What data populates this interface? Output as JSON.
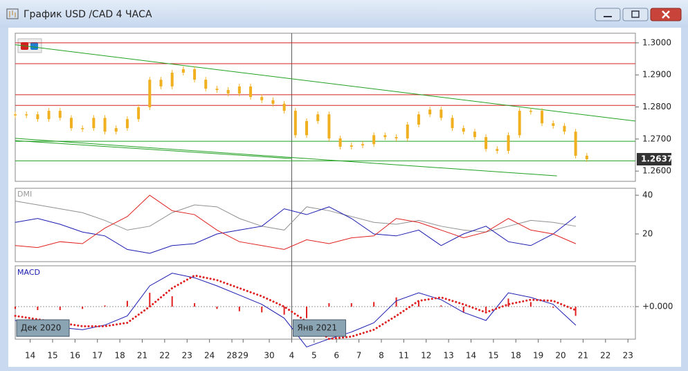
{
  "window": {
    "title": "График USD /CAD  4 ЧАСА"
  },
  "chart_data": [
    {
      "type": "candlestick",
      "color": "#f0b020",
      "x": [
        0,
        3,
        6,
        9,
        12,
        15,
        18,
        21,
        24,
        27,
        30,
        33,
        36,
        39,
        42,
        45,
        48,
        51,
        54,
        57,
        60,
        63,
        66,
        69,
        72,
        75,
        78,
        81,
        84,
        87,
        90,
        93,
        96,
        99,
        102,
        105,
        108,
        111,
        114,
        117,
        120,
        123,
        126,
        129,
        132,
        135,
        138,
        141,
        144,
        147,
        150,
        153
      ],
      "values": [
        1.2777,
        1.2777,
        1.2762,
        1.2788,
        1.2766,
        1.2734,
        1.2734,
        1.2766,
        1.2723,
        1.2734,
        1.2762,
        1.2799,
        1.2885,
        1.2864,
        1.2907,
        1.2918,
        1.2885,
        1.2857,
        1.2853,
        1.2842,
        1.2864,
        1.2831,
        1.2821,
        1.281,
        1.2788,
        1.2712,
        1.2756,
        1.2777,
        1.2702,
        1.2676,
        1.268,
        1.2684,
        1.2712,
        1.2706,
        1.2702,
        1.2745,
        1.2777,
        1.2792,
        1.2766,
        1.2734,
        1.2723,
        1.2706,
        1.2669,
        1.2663,
        1.2712,
        1.2788,
        1.2788,
        1.2749,
        1.2741,
        1.2723,
        1.2648,
        1.2637
      ],
      "ylim": [
        1.2568,
        1.303
      ],
      "yticks": [
        {
          "value": 1.3,
          "label": "1.3000"
        },
        {
          "value": 1.29,
          "label": "1.2900"
        },
        {
          "value": 1.28,
          "label": "1.2800"
        },
        {
          "value": 1.27,
          "label": "1.2700"
        },
        {
          "value": 1.26,
          "label": "1.2600"
        }
      ],
      "current_price": {
        "value": 1.2637,
        "label": "1.2637"
      },
      "levels": [
        {
          "value": 1.3,
          "color": "#d42020"
        },
        {
          "value": 1.2935,
          "color": "#d42020"
        },
        {
          "value": 1.2838,
          "color": "#d42020"
        },
        {
          "value": 1.2805,
          "color": "#d42020"
        },
        {
          "value": 1.2693,
          "color": "#20a020"
        },
        {
          "value": 1.2632,
          "color": "#20a020"
        }
      ],
      "trendlines": [
        {
          "x": [
            0,
            166
          ],
          "y": [
            1.2994,
            1.2756
          ],
          "color": "#20a020"
        },
        {
          "x": [
            0,
            145
          ],
          "y": [
            1.2702,
            1.2585
          ],
          "color": "#20a020"
        },
        {
          "x": [
            0,
            74
          ],
          "y": [
            1.2695,
            1.2639
          ],
          "color": "#20a020"
        }
      ]
    },
    {
      "type": "line",
      "label": "DMI",
      "x": [
        0,
        6,
        12,
        18,
        24,
        30,
        36,
        42,
        48,
        54,
        60,
        66,
        72,
        78,
        84,
        90,
        96,
        102,
        108,
        114,
        120,
        126,
        132,
        138,
        144,
        150
      ],
      "series": [
        {
          "color": "#909090",
          "values": [
            37,
            35,
            33,
            31,
            27,
            22,
            24,
            31,
            35,
            34,
            28,
            24,
            22,
            34,
            32,
            29,
            26,
            25,
            27,
            24,
            22,
            21,
            24,
            27,
            26,
            24
          ]
        },
        {
          "color": "#1a1ab0",
          "values": [
            26,
            28,
            25,
            21,
            19,
            12,
            10,
            14,
            15,
            20,
            22,
            24,
            33,
            30,
            34,
            28,
            20,
            19,
            22,
            14,
            20,
            24,
            16,
            14,
            20,
            29
          ]
        },
        {
          "color": "#e02020",
          "values": [
            14,
            13,
            16,
            15,
            23,
            29,
            40,
            32,
            30,
            22,
            16,
            14,
            12,
            17,
            15,
            18,
            19,
            28,
            26,
            22,
            18,
            21,
            28,
            22,
            20,
            15
          ]
        }
      ],
      "ylim": [
        5.7,
        43.6
      ],
      "yticks": [
        40,
        20
      ]
    },
    {
      "type": "macd",
      "label": "MACD",
      "x": [
        0,
        6,
        12,
        18,
        24,
        30,
        36,
        42,
        48,
        54,
        60,
        66,
        72,
        78,
        84,
        90,
        96,
        102,
        108,
        114,
        120,
        126,
        132,
        138,
        144,
        150
      ],
      "histogram": {
        "color": "#e02020",
        "values": [
          -0.0002,
          -0.0003,
          -0.0003,
          -0.0002,
          0.0001,
          0.0005,
          0.0012,
          0.0009,
          0.0003,
          -0.0002,
          -0.0004,
          -0.0005,
          -0.0007,
          -0.001,
          0.0003,
          0.0003,
          0.0004,
          0.0008,
          0.0005,
          0.0001,
          -0.0005,
          -0.0004,
          0.0007,
          0.0004,
          -0.0001,
          -0.0008
        ]
      },
      "series": [
        {
          "color": "#1a1ab0",
          "values": [
            -0.0012,
            -0.0015,
            -0.0018,
            -0.002,
            -0.0016,
            -0.0008,
            0.0018,
            0.0029,
            0.0025,
            0.0018,
            0.001,
            0.0002,
            -0.001,
            -0.0035,
            -0.0028,
            -0.0022,
            -0.0014,
            0.0005,
            0.0012,
            0.0006,
            -0.0005,
            -0.0012,
            0.0012,
            0.0008,
            0.0002,
            -0.0016
          ]
        },
        {
          "color": "#e02020",
          "dotted": true,
          "values": [
            -0.0008,
            -0.0011,
            -0.0014,
            -0.0017,
            -0.0017,
            -0.0014,
            0,
            0.0016,
            0.0027,
            0.0023,
            0.0016,
            0.0009,
            0,
            -0.0013,
            -0.0028,
            -0.0026,
            -0.002,
            -0.0008,
            0.0005,
            0.0008,
            0.0002,
            -0.0005,
            0.0002,
            0.0006,
            0.0005,
            -0.0003
          ]
        }
      ],
      "ylim": [
        -0.00282,
        0.00354
      ],
      "yticks": [
        {
          "value": 0,
          "label": "+0.000"
        }
      ],
      "period_labels": [
        "Дек 2020",
        "Янв 2021"
      ],
      "xlim": [
        0,
        166
      ],
      "xticks": [
        {
          "value": 4,
          "label": "14"
        },
        {
          "value": 10,
          "label": "15"
        },
        {
          "value": 16,
          "label": "16"
        },
        {
          "value": 22,
          "label": "17"
        },
        {
          "value": 28,
          "label": "18"
        },
        {
          "value": 34,
          "label": "21"
        },
        {
          "value": 40,
          "label": "22"
        },
        {
          "value": 46,
          "label": "23"
        },
        {
          "value": 52,
          "label": "24"
        },
        {
          "value": 58,
          "label": "28"
        },
        {
          "value": 61,
          "label": "29"
        },
        {
          "value": 68,
          "label": "30"
        },
        {
          "value": 74,
          "label": "4"
        },
        {
          "value": 80,
          "label": "5"
        },
        {
          "value": 86,
          "label": "6"
        },
        {
          "value": 92,
          "label": "7"
        },
        {
          "value": 98,
          "label": "8"
        },
        {
          "value": 104,
          "label": "11"
        },
        {
          "value": 110,
          "label": "12"
        },
        {
          "value": 116,
          "label": "13"
        },
        {
          "value": 122,
          "label": "14"
        },
        {
          "value": 128,
          "label": "15"
        },
        {
          "value": 134,
          "label": "18"
        },
        {
          "value": 140,
          "label": "19"
        },
        {
          "value": 146,
          "label": "20"
        },
        {
          "value": 152,
          "label": "21"
        },
        {
          "value": 158,
          "label": "22"
        },
        {
          "value": 164,
          "label": "23"
        }
      ]
    }
  ]
}
